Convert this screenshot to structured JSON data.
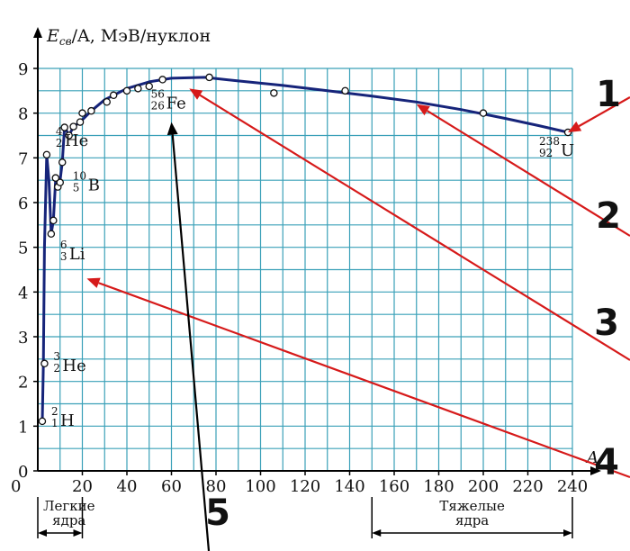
{
  "chart_data": {
    "type": "scatter",
    "ylabel_main": "E",
    "ylabel_sub": "св",
    "ylabel_rest": "/A, МэВ/нуклон",
    "xlabel": "A",
    "xlim": [
      0,
      240
    ],
    "ylim": [
      0,
      9
    ],
    "x_ticks": [
      "0",
      "20",
      "40",
      "60",
      "80",
      "100",
      "120",
      "140",
      "160",
      "180",
      "200",
      "220",
      "240"
    ],
    "y_ticks": [
      "0",
      "1",
      "2",
      "3",
      "4",
      "5",
      "6",
      "7",
      "8",
      "9"
    ],
    "points": [
      {
        "x": 2,
        "y": 1.11
      },
      {
        "x": 3,
        "y": 2.4
      },
      {
        "x": 4,
        "y": 7.07
      },
      {
        "x": 6,
        "y": 5.3
      },
      {
        "x": 7,
        "y": 5.6
      },
      {
        "x": 9,
        "y": 6.35
      },
      {
        "x": 10,
        "y": 6.45
      },
      {
        "x": 11,
        "y": 6.9
      },
      {
        "x": 8,
        "y": 6.55
      },
      {
        "x": 12,
        "y": 7.68
      },
      {
        "x": 14,
        "y": 7.5
      },
      {
        "x": 16,
        "y": 7.7
      },
      {
        "x": 19,
        "y": 7.8
      },
      {
        "x": 20,
        "y": 8.0
      },
      {
        "x": 24,
        "y": 8.05
      },
      {
        "x": 31,
        "y": 8.25
      },
      {
        "x": 34,
        "y": 8.4
      },
      {
        "x": 40,
        "y": 8.5
      },
      {
        "x": 45,
        "y": 8.55
      },
      {
        "x": 50,
        "y": 8.6
      },
      {
        "x": 56,
        "y": 8.75
      },
      {
        "x": 77,
        "y": 8.8
      },
      {
        "x": 106,
        "y": 8.45
      },
      {
        "x": 138,
        "y": 8.5
      },
      {
        "x": 200,
        "y": 8.0
      },
      {
        "x": 238,
        "y": 7.57
      }
    ],
    "curve": [
      {
        "x": 2,
        "y": 1.11
      },
      {
        "x": 2.5,
        "y": 2.4
      },
      {
        "x": 3,
        "y": 5.0
      },
      {
        "x": 4,
        "y": 7.07
      },
      {
        "x": 5,
        "y": 6.5
      },
      {
        "x": 6,
        "y": 5.3
      },
      {
        "x": 7,
        "y": 5.6
      },
      {
        "x": 8,
        "y": 6.5
      },
      {
        "x": 9,
        "y": 6.3
      },
      {
        "x": 10,
        "y": 6.5
      },
      {
        "x": 11,
        "y": 6.9
      },
      {
        "x": 12,
        "y": 7.68
      },
      {
        "x": 13,
        "y": 7.6
      },
      {
        "x": 14,
        "y": 7.5
      },
      {
        "x": 16,
        "y": 7.7
      },
      {
        "x": 19,
        "y": 7.8
      },
      {
        "x": 24,
        "y": 8.05
      },
      {
        "x": 30,
        "y": 8.3
      },
      {
        "x": 40,
        "y": 8.55
      },
      {
        "x": 50,
        "y": 8.7
      },
      {
        "x": 60,
        "y": 8.78
      },
      {
        "x": 75,
        "y": 8.8
      },
      {
        "x": 90,
        "y": 8.72
      },
      {
        "x": 110,
        "y": 8.62
      },
      {
        "x": 130,
        "y": 8.5
      },
      {
        "x": 150,
        "y": 8.38
      },
      {
        "x": 170,
        "y": 8.25
      },
      {
        "x": 190,
        "y": 8.08
      },
      {
        "x": 210,
        "y": 7.88
      },
      {
        "x": 225,
        "y": 7.72
      },
      {
        "x": 238,
        "y": 7.57
      }
    ],
    "annotations": [
      {
        "mass": "4",
        "charge": "2",
        "symbol": "He",
        "x": 4,
        "y": 7.07
      },
      {
        "mass": "10",
        "charge": "5",
        "symbol": "B",
        "x": 10,
        "y": 6.45
      },
      {
        "mass": "6",
        "charge": "3",
        "symbol": "Li",
        "x": 6,
        "y": 5.3
      },
      {
        "mass": "3",
        "charge": "2",
        "symbol": "He",
        "x": 3,
        "y": 2.4
      },
      {
        "mass": "2",
        "charge": "1",
        "symbol": "H",
        "x": 2,
        "y": 1.11
      },
      {
        "mass": "56",
        "charge": "26",
        "symbol": "Fe",
        "x": 56,
        "y": 8.75
      },
      {
        "mass": "238",
        "charge": "92",
        "symbol": "U",
        "x": 238,
        "y": 7.57
      }
    ],
    "regions": [
      {
        "label_line1": "Легкие",
        "label_line2": "ядра",
        "from": 0,
        "to": 20
      },
      {
        "label_line1": "Тяжелые",
        "label_line2": "ядра",
        "from": 150,
        "to": 240
      }
    ],
    "markers": [
      {
        "label": "1",
        "target": {
          "x": 238,
          "y": 7.57
        }
      },
      {
        "label": "2",
        "target": {
          "x": 170,
          "y": 8.2
        }
      },
      {
        "label": "3",
        "target": {
          "x": 68,
          "y": 8.55
        }
      },
      {
        "label": "4",
        "target": {
          "x": 22,
          "y": 4.3
        }
      },
      {
        "label": "5",
        "target": {
          "x": 60,
          "y": 7.8
        }
      }
    ],
    "colors": {
      "grid": "#3aa0b8",
      "curve": "#16247a",
      "arrow_red": "#d61a1a",
      "arrow_black": "#000000"
    }
  }
}
